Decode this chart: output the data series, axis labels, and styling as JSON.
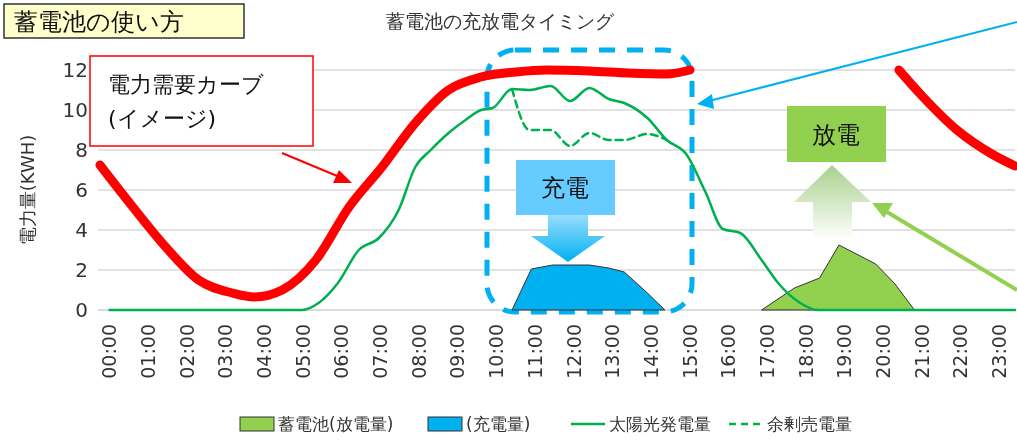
{
  "chart_data": {
    "type": "line",
    "title": "蓄電池の充放電タイミング",
    "ylabel": "電力量(KWH)",
    "annotations": [
      "蓄電池の使い方",
      "電力需要カーブ\n(イメージ)",
      "充電",
      "放電"
    ],
    "xlim": [
      -0.3,
      23.4
    ],
    "xticks": [
      {
        "value": 0,
        "label": "00:00"
      },
      {
        "value": 1,
        "label": "01:00"
      },
      {
        "value": 2,
        "label": "02:00"
      },
      {
        "value": 3,
        "label": "03:00"
      },
      {
        "value": 4,
        "label": "04:00"
      },
      {
        "value": 5,
        "label": "05:00"
      },
      {
        "value": 6,
        "label": "06:00"
      },
      {
        "value": 7,
        "label": "07:00"
      },
      {
        "value": 8,
        "label": "08:00"
      },
      {
        "value": 9,
        "label": "09:00"
      },
      {
        "value": 10,
        "label": "10:00"
      },
      {
        "value": 11,
        "label": "11:00"
      },
      {
        "value": 12,
        "label": "12:00"
      },
      {
        "value": 13,
        "label": "13:00"
      },
      {
        "value": 14,
        "label": "14:00"
      },
      {
        "value": 15,
        "label": "15:00"
      },
      {
        "value": 16,
        "label": "16:00"
      },
      {
        "value": 17,
        "label": "17:00"
      },
      {
        "value": 18,
        "label": "18:00"
      },
      {
        "value": 19,
        "label": "19:00"
      },
      {
        "value": 20,
        "label": "20:00"
      },
      {
        "value": 21,
        "label": "21:00"
      },
      {
        "value": 22,
        "label": "22:00"
      },
      {
        "value": 23,
        "label": "23:00"
      }
    ],
    "ylim": [
      0,
      12
    ],
    "yticks": [
      0,
      2,
      4,
      6,
      8,
      10,
      12
    ],
    "grid": "y",
    "legend": "bottom",
    "series": [
      {
        "name": "蓄電池(放電量)",
        "type": "area",
        "color": "#92d050",
        "x": [
          16.85,
          17.7,
          18.35,
          18.85,
          19.8,
          20.3,
          20.8
        ],
        "values": [
          0,
          1.1,
          1.6,
          3.25,
          2.3,
          1.3,
          0
        ]
      },
      {
        "name": "(充電量)",
        "type": "area",
        "color": "#00b0f0",
        "x": [
          10.4,
          10.9,
          11.45,
          12.4,
          12.9,
          13.3,
          13.9,
          14.35
        ],
        "values": [
          0,
          2.05,
          2.25,
          2.25,
          2.1,
          1.9,
          0.85,
          0
        ]
      },
      {
        "name": "太陽光発電量",
        "color": "#00b050",
        "line_style": "solid",
        "x": [
          0,
          4.97,
          5.4,
          5.9,
          6.44,
          6.96,
          7.47,
          7.9,
          8.3,
          8.76,
          9.2,
          9.6,
          9.9,
          10.4,
          10.85,
          11.4,
          11.9,
          12.4,
          12.9,
          13.3,
          13.9,
          14.4,
          14.9,
          15.4,
          15.85,
          16.3,
          16.85,
          17.3,
          17.85,
          18.3,
          23.4
        ],
        "values": [
          0,
          0,
          0.35,
          1.35,
          3.0,
          3.6,
          5.0,
          7.15,
          8.0,
          8.85,
          9.5,
          10.0,
          10.1,
          11.05,
          11.0,
          11.2,
          10.45,
          11.1,
          10.55,
          10.35,
          9.6,
          8.5,
          7.8,
          5.9,
          4.05,
          3.85,
          2.5,
          1.3,
          0.35,
          0,
          0
        ]
      },
      {
        "name": "余剰売電量",
        "color": "#00b050",
        "line_style": "dashed",
        "x": [
          10.4,
          10.85,
          11.4,
          11.9,
          12.4,
          12.9,
          13.3,
          13.9,
          14.4
        ],
        "values": [
          11.05,
          9.0,
          9.0,
          8.2,
          8.85,
          8.5,
          8.5,
          8.8,
          8.5
        ]
      },
      {
        "color": "#ff0000",
        "line_style": "solid",
        "x": [
          -0.25,
          0.6,
          1.45,
          2.3,
          3.17,
          3.74,
          4.46,
          5.33,
          6.19,
          7.04,
          7.9,
          8.76,
          9.6,
          10.5,
          11.3,
          12.4,
          13.4,
          14.4,
          15.0,
          15.6,
          20.4,
          21.0,
          21.9,
          22.8,
          23.4
        ],
        "values": [
          7.25,
          5.15,
          3.15,
          1.5,
          0.85,
          0.65,
          1.0,
          2.5,
          5.15,
          7.15,
          9.35,
          11.0,
          11.65,
          11.9,
          12.0,
          11.95,
          11.85,
          11.8,
          12.0,
          null,
          12.0,
          10.7,
          9.0,
          7.8,
          7.2
        ]
      }
    ]
  }
}
